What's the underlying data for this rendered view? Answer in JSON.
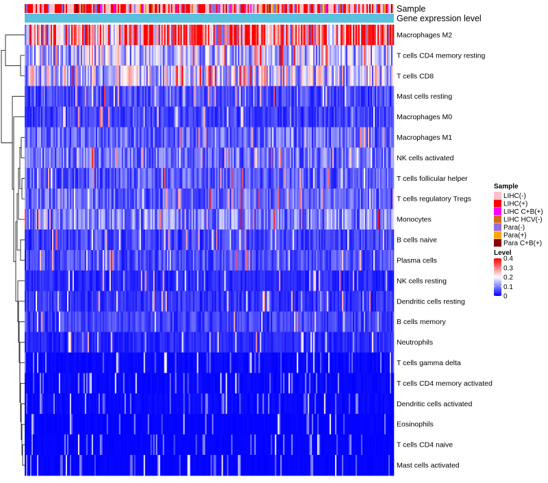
{
  "chart_data": {
    "type": "heatmap",
    "title": "",
    "annotation_tracks": [
      "Sample",
      "Gene expression level"
    ],
    "rows": [
      "Macrophages M2",
      "T cells CD4 memory resting",
      "T cells CD8",
      "Mast cells resting",
      "Macrophages M0",
      "Macrophages M1",
      "NK cells activated",
      "T cells follicular helper",
      "T cells regulatory  Tregs",
      "Monocytes",
      "B cells naive",
      "Plasma cells",
      "NK cells resting",
      "Dendritic cells resting",
      "B cells memory",
      "Neutrophils",
      "T cells gamma delta",
      "T cells CD4 memory activated",
      "Dendritic cells activated",
      "Eosinophils",
      "T cells CD4 naive",
      "Mast cells activated"
    ],
    "row_mean_level": [
      0.3,
      0.14,
      0.17,
      0.06,
      0.05,
      0.08,
      0.09,
      0.07,
      0.08,
      0.1,
      0.05,
      0.06,
      0.03,
      0.04,
      0.05,
      0.03,
      0.02,
      0.02,
      0.02,
      0.01,
      0.01,
      0.01
    ],
    "sample_legend": {
      "title": "Sample",
      "items": [
        {
          "label": "LIHC(-)",
          "color": "#ffc0cb"
        },
        {
          "label": "LIHC(+)",
          "color": "#ff0000"
        },
        {
          "label": "LIHC C+B(+)",
          "color": "#ff00ff"
        },
        {
          "label": "LIHC HCV(-)",
          "color": "#d2691e"
        },
        {
          "label": "Para(-)",
          "color": "#9370db"
        },
        {
          "label": "Para(+)",
          "color": "#ffa500"
        },
        {
          "label": "Para C+B(+)",
          "color": "#8b0000"
        }
      ]
    },
    "level_legend": {
      "title": "Level",
      "ticks": [
        "0.4",
        "0.3",
        "0.2",
        "0.1",
        "0"
      ],
      "range": [
        0,
        0.4
      ],
      "colors": [
        "#0000ff",
        "#ffffff",
        "#ff0000"
      ]
    },
    "expression_track_color": "#5bc0de"
  }
}
